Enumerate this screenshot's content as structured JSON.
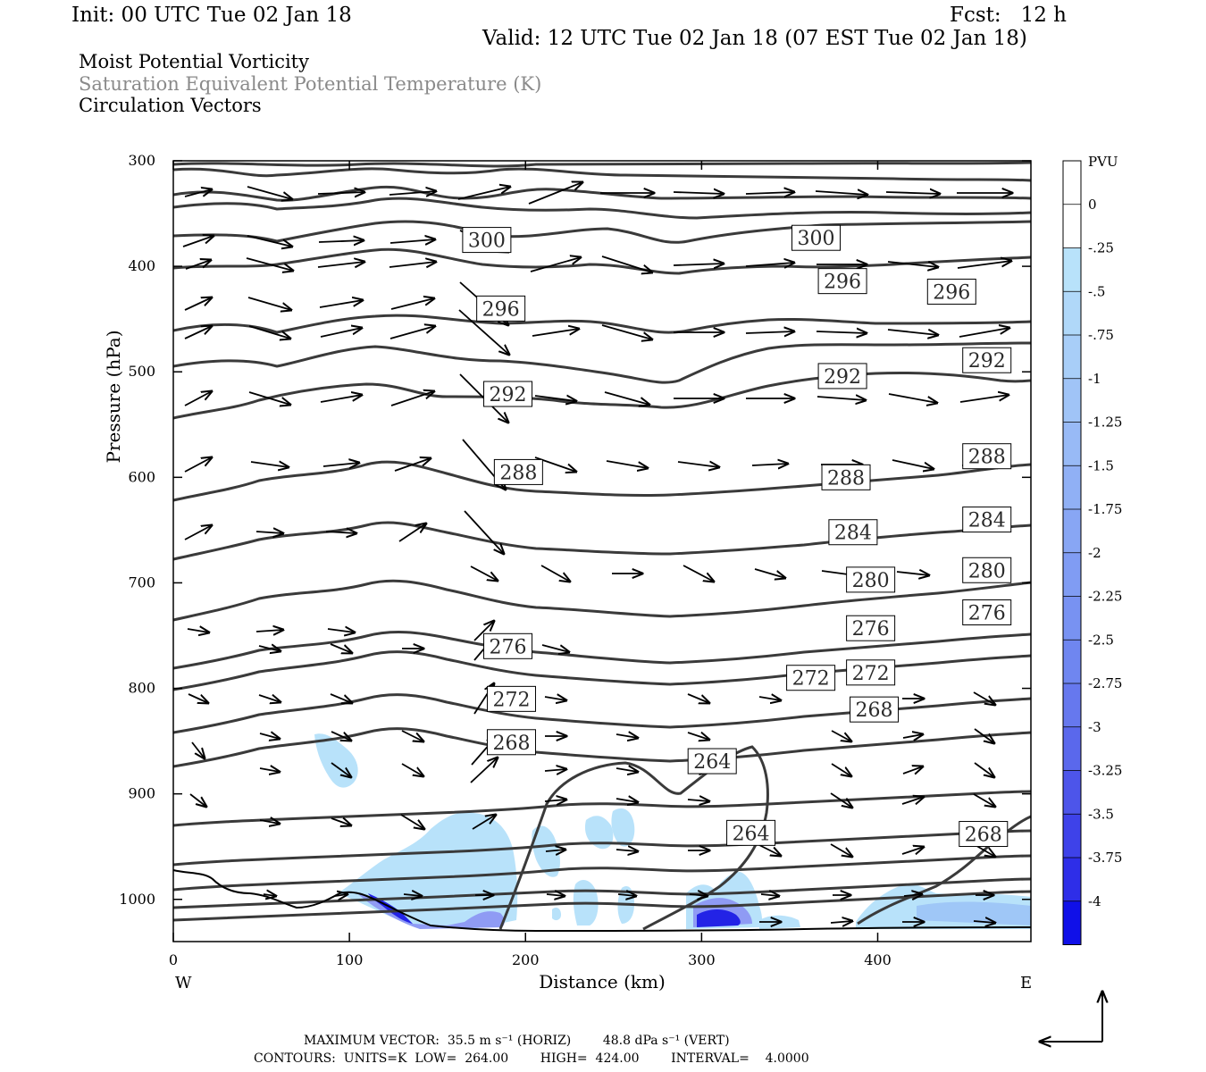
{
  "header": {
    "init": "Init: 00 UTC Tue 02 Jan 18",
    "fcst": "Fcst:   12 h",
    "valid": "Valid: 12 UTC Tue 02 Jan 18 (07 EST Tue 02 Jan 18)",
    "field1": "Moist Potential Vorticity",
    "field2": "Saturation Equivalent Potential Temperature (K)",
    "field3": "Circulation Vectors"
  },
  "footer": {
    "line1": "MAXIMUM VECTOR:  35.5 m s⁻¹ (HORIZ)        48.8 dPa s⁻¹ (VERT)",
    "line2": "CONTOURS:  UNITS=K  LOW=  264.00        HIGH=  424.00        INTERVAL=    4.0000"
  },
  "colors": {
    "contour": "#3a3a3a",
    "terrain": "#000000",
    "shade_light": "#b8e2fa",
    "shade_mid": "#7f86f2",
    "shade_dark": "#1010e8"
  },
  "chart_data": {
    "type": "cross-section",
    "xlabel": "Distance (km)",
    "ylabel": "Pressure (hPa)",
    "xlim": [
      0,
      487
    ],
    "ylim": [
      300,
      1040
    ],
    "x_ticks": [
      "0",
      "100",
      "200",
      "300",
      "400"
    ],
    "y_ticks": [
      "300",
      "400",
      "500",
      "600",
      "700",
      "800",
      "900",
      "1000"
    ],
    "x_ticks_values": [
      0,
      100,
      200,
      300,
      400
    ],
    "y_ticks_values": [
      300,
      400,
      500,
      600,
      700,
      800,
      900,
      1000
    ],
    "west_label": "W",
    "east_label": "E",
    "colorbar": {
      "title": "PVU",
      "labels": [
        "0",
        "-.25",
        "-.5",
        "-.75",
        "-1",
        "-1.25",
        "-1.5",
        "-1.75",
        "-2",
        "-2.25",
        "-2.5",
        "-2.75",
        "-3",
        "-3.25",
        "-3.5",
        "-3.75",
        "-4"
      ],
      "colors": [
        "#ffffff",
        "#ffffff",
        "#b8e2fa",
        "#b0d8f9",
        "#a8cef8",
        "#a0c4f7",
        "#98baf6",
        "#90b0f5",
        "#88a6f4",
        "#809cf3",
        "#7892f2",
        "#6f86f0",
        "#6678ee",
        "#5a68ec",
        "#4d55ea",
        "#3e42e9",
        "#2e2ee8",
        "#1010e8"
      ]
    },
    "contour_labels": [
      {
        "value": "300",
        "x": 178,
        "p": 375
      },
      {
        "value": "300",
        "x": 365,
        "p": 373
      },
      {
        "value": "296",
        "x": 186,
        "p": 440
      },
      {
        "value": "296",
        "x": 380,
        "p": 414
      },
      {
        "value": "296",
        "x": 442,
        "p": 424
      },
      {
        "value": "292",
        "x": 190,
        "p": 521
      },
      {
        "value": "292",
        "x": 380,
        "p": 504
      },
      {
        "value": "292",
        "x": 462,
        "p": 489
      },
      {
        "value": "288",
        "x": 196,
        "p": 595
      },
      {
        "value": "288",
        "x": 382,
        "p": 600
      },
      {
        "value": "288",
        "x": 462,
        "p": 580
      },
      {
        "value": "284",
        "x": 386,
        "p": 652
      },
      {
        "value": "284",
        "x": 462,
        "p": 640
      },
      {
        "value": "280",
        "x": 396,
        "p": 697
      },
      {
        "value": "280",
        "x": 462,
        "p": 688
      },
      {
        "value": "276",
        "x": 190,
        "p": 760
      },
      {
        "value": "276",
        "x": 396,
        "p": 743
      },
      {
        "value": "276",
        "x": 462,
        "p": 728
      },
      {
        "value": "272",
        "x": 192,
        "p": 810
      },
      {
        "value": "272",
        "x": 362,
        "p": 790
      },
      {
        "value": "272",
        "x": 396,
        "p": 785
      },
      {
        "value": "268",
        "x": 192,
        "p": 851
      },
      {
        "value": "268",
        "x": 398,
        "p": 820
      },
      {
        "value": "268",
        "x": 460,
        "p": 938
      },
      {
        "value": "264",
        "x": 306,
        "p": 869
      },
      {
        "value": "264",
        "x": 328,
        "p": 937
      }
    ]
  }
}
